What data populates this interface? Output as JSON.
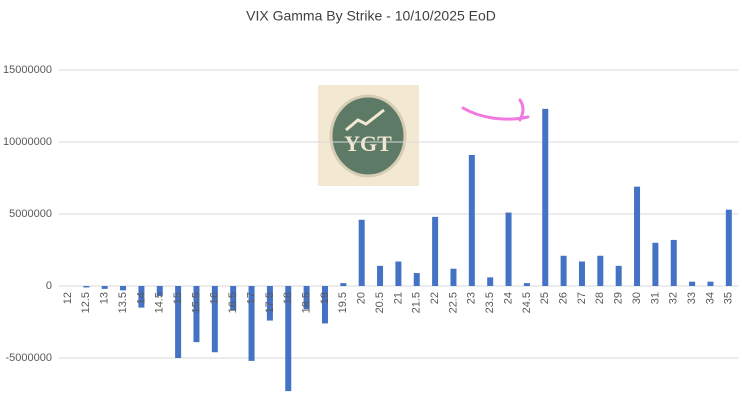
{
  "chart_data": {
    "type": "bar",
    "title": "VIX Gamma By Strike - 10/10/2025 EoD",
    "categories": [
      "12",
      "12.5",
      "13",
      "13.5",
      "14",
      "14.5",
      "15",
      "15.5",
      "16",
      "16.5",
      "17",
      "17.5",
      "18",
      "18.5",
      "19",
      "19.5",
      "20",
      "20.5",
      "21",
      "21.5",
      "22",
      "22.5",
      "23",
      "23.5",
      "24",
      "24.5",
      "25",
      "26",
      "27",
      "28",
      "29",
      "30",
      "31",
      "32",
      "33",
      "34",
      "35"
    ],
    "values": [
      0,
      -100000,
      -200000,
      -300000,
      -1500000,
      -700000,
      -5000000,
      -3900000,
      -4600000,
      -1700000,
      -5200000,
      -2400000,
      -7300000,
      -1600000,
      -2600000,
      200000,
      4600000,
      1400000,
      1700000,
      900000,
      4800000,
      1200000,
      9100000,
      600000,
      5100000,
      200000,
      12300000,
      2100000,
      1700000,
      2100000,
      1400000,
      6900000,
      3000000,
      3200000,
      300000,
      300000,
      5300000
    ],
    "color": "#4472c4",
    "ylim": [
      -7500000,
      17500000
    ],
    "yticks": [
      -5000000,
      0,
      5000000,
      10000000,
      15000000
    ],
    "grid": true
  },
  "logo": {
    "text": "YGT"
  }
}
